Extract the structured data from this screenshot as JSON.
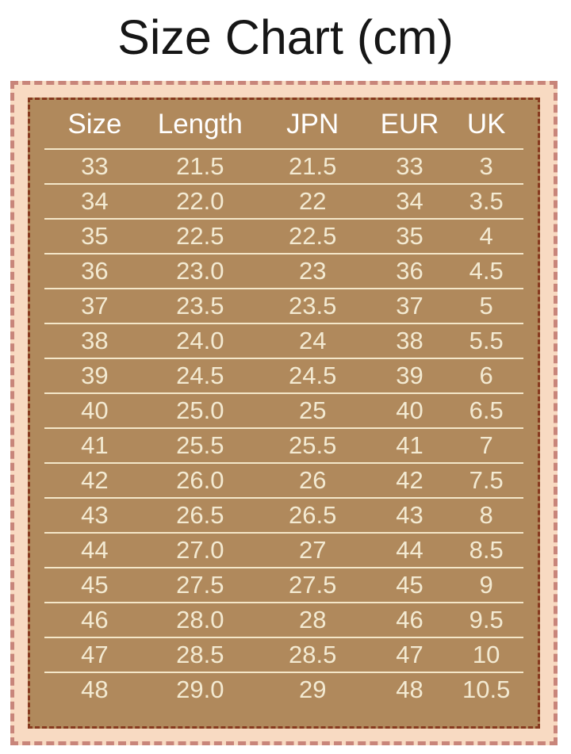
{
  "title": "Size Chart (cm)",
  "colors": {
    "page_background": "#ffffff",
    "panel_background": "#f8dac2",
    "panel_dashed_border": "#c8857a",
    "table_background": "#b0895c",
    "table_dashed_border": "#873a1f",
    "header_text": "#ffffff",
    "cell_text": "#f3ead2",
    "divider_line": "#f4e7c9",
    "title_text": "#161616"
  },
  "chart_data": {
    "type": "table",
    "title": "Size Chart (cm)",
    "columns": [
      "Size",
      "Length",
      "JPN",
      "EUR",
      "UK"
    ],
    "rows": [
      [
        "33",
        "21.5",
        "21.5",
        "33",
        "3"
      ],
      [
        "34",
        "22.0",
        "22",
        "34",
        "3.5"
      ],
      [
        "35",
        "22.5",
        "22.5",
        "35",
        "4"
      ],
      [
        "36",
        "23.0",
        "23",
        "36",
        "4.5"
      ],
      [
        "37",
        "23.5",
        "23.5",
        "37",
        "5"
      ],
      [
        "38",
        "24.0",
        "24",
        "38",
        "5.5"
      ],
      [
        "39",
        "24.5",
        "24.5",
        "39",
        "6"
      ],
      [
        "40",
        "25.0",
        "25",
        "40",
        "6.5"
      ],
      [
        "41",
        "25.5",
        "25.5",
        "41",
        "7"
      ],
      [
        "42",
        "26.0",
        "26",
        "42",
        "7.5"
      ],
      [
        "43",
        "26.5",
        "26.5",
        "43",
        "8"
      ],
      [
        "44",
        "27.0",
        "27",
        "44",
        "8.5"
      ],
      [
        "45",
        "27.5",
        "27.5",
        "45",
        "9"
      ],
      [
        "46",
        "28.0",
        "28",
        "46",
        "9.5"
      ],
      [
        "47",
        "28.5",
        "28.5",
        "47",
        "10"
      ],
      [
        "48",
        "29.0",
        "29",
        "48",
        "10.5"
      ]
    ]
  }
}
